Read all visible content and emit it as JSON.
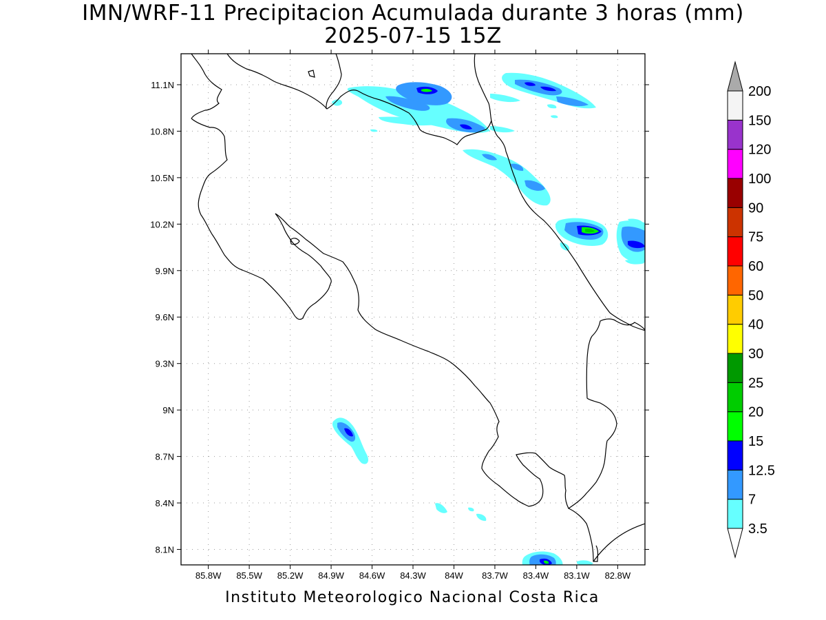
{
  "header": {
    "title_line1": "IMN/WRF-11 Precipitacion Acumulada durante 3 horas (mm)",
    "title_line2": "2025-07-15 15Z"
  },
  "footer": {
    "credit": "Instituto Meteorologico Nacional Costa Rica"
  },
  "map": {
    "lon_range": [
      -86.0,
      -82.6
    ],
    "lat_range": [
      8.0,
      11.3
    ],
    "lon_ticks": [
      {
        "value": -85.8,
        "label": "85.8W"
      },
      {
        "value": -85.5,
        "label": "85.5W"
      },
      {
        "value": -85.2,
        "label": "85.2W"
      },
      {
        "value": -84.9,
        "label": "84.9W"
      },
      {
        "value": -84.6,
        "label": "84.6W"
      },
      {
        "value": -84.3,
        "label": "84.3W"
      },
      {
        "value": -84.0,
        "label": "84W"
      },
      {
        "value": -83.7,
        "label": "83.7W"
      },
      {
        "value": -83.4,
        "label": "83.4W"
      },
      {
        "value": -83.1,
        "label": "83.1W"
      },
      {
        "value": -82.8,
        "label": "82.8W"
      }
    ],
    "lat_ticks": [
      {
        "value": 11.1,
        "label": "11.1N"
      },
      {
        "value": 10.8,
        "label": "10.8N"
      },
      {
        "value": 10.5,
        "label": "10.5N"
      },
      {
        "value": 10.2,
        "label": "10.2N"
      },
      {
        "value": 9.9,
        "label": "9.9N"
      },
      {
        "value": 9.6,
        "label": "9.6N"
      },
      {
        "value": 9.3,
        "label": "9.3N"
      },
      {
        "value": 9.0,
        "label": "9N"
      },
      {
        "value": 8.7,
        "label": "8.7N"
      },
      {
        "value": 8.4,
        "label": "8.4N"
      },
      {
        "value": 8.1,
        "label": "8.1N"
      }
    ],
    "grid": true
  },
  "colorbar": {
    "units": "mm",
    "levels": [
      "3.5",
      "7",
      "12.5",
      "15",
      "20",
      "25",
      "30",
      "40",
      "50",
      "60",
      "75",
      "90",
      "100",
      "120",
      "150",
      "200"
    ],
    "colors": [
      "#66ffff",
      "#3399ff",
      "#0000ff",
      "#00ff00",
      "#00cc00",
      "#009900",
      "#ffff00",
      "#ffcc00",
      "#ff6600",
      "#ff0000",
      "#cc3300",
      "#990000",
      "#ff00ff",
      "#9933cc",
      "#f4f4f4"
    ],
    "under_color": "#ffffff",
    "over_color": "#aaaaaa"
  },
  "precip_cells": [
    {
      "lon": -84.15,
      "lat": 11.06,
      "max_category": "15"
    },
    {
      "lon": -84.4,
      "lat": 11.0,
      "max_category": "7"
    },
    {
      "lon": -83.9,
      "lat": 10.83,
      "max_category": "12.5"
    },
    {
      "lon": -83.2,
      "lat": 11.07,
      "max_category": "12.5"
    },
    {
      "lon": -83.6,
      "lat": 10.6,
      "max_category": "7"
    },
    {
      "lon": -83.35,
      "lat": 10.42,
      "max_category": "7"
    },
    {
      "lon": -82.95,
      "lat": 10.16,
      "max_category": "20"
    },
    {
      "lon": -82.65,
      "lat": 10.05,
      "max_category": "12.5"
    },
    {
      "lon": -84.75,
      "lat": 8.85,
      "max_category": "12.5"
    },
    {
      "lon": -83.25,
      "lat": 8.02,
      "max_category": "15"
    }
  ]
}
